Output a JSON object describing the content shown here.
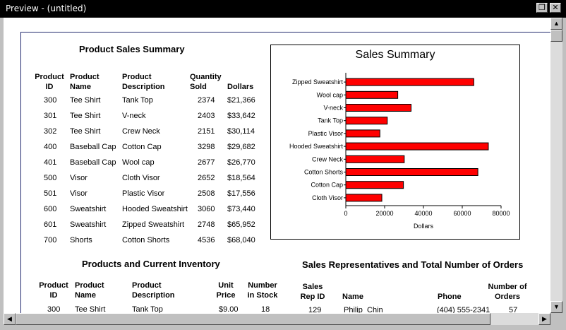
{
  "window": {
    "title": "Preview - (untitled)"
  },
  "icons": {
    "restore": "restore-icon",
    "close": "close-icon"
  },
  "colors": {
    "bar": "#ff0000",
    "titlebar": "#000000"
  },
  "report1": {
    "title": "Product Sales Summary",
    "headers": {
      "id": "Product\nID",
      "name": "Product\nName",
      "desc": "Product\nDescription",
      "qty": "Quantity\nSold",
      "dollars": "Dollars"
    },
    "rows": [
      {
        "id": "300",
        "name": "Tee Shirt",
        "desc": "Tank Top",
        "qty": "2374",
        "dollars": "$21,366"
      },
      {
        "id": "301",
        "name": "Tee Shirt",
        "desc": "V-neck",
        "qty": "2403",
        "dollars": "$33,642"
      },
      {
        "id": "302",
        "name": "Tee Shirt",
        "desc": "Crew Neck",
        "qty": "2151",
        "dollars": "$30,114"
      },
      {
        "id": "400",
        "name": "Baseball Cap",
        "desc": "Cotton Cap",
        "qty": "3298",
        "dollars": "$29,682"
      },
      {
        "id": "401",
        "name": "Baseball Cap",
        "desc": "Wool cap",
        "qty": "2677",
        "dollars": "$26,770"
      },
      {
        "id": "500",
        "name": "Visor",
        "desc": "Cloth Visor",
        "qty": "2652",
        "dollars": "$18,564"
      },
      {
        "id": "501",
        "name": "Visor",
        "desc": "Plastic Visor",
        "qty": "2508",
        "dollars": "$17,556"
      },
      {
        "id": "600",
        "name": "Sweatshirt",
        "desc": "Hooded Sweatshirt",
        "qty": "3060",
        "dollars": "$73,440"
      },
      {
        "id": "601",
        "name": "Sweatshirt",
        "desc": "Zipped Sweatshirt",
        "qty": "2748",
        "dollars": "$65,952"
      },
      {
        "id": "700",
        "name": "Shorts",
        "desc": "Cotton Shorts",
        "qty": "4536",
        "dollars": "$68,040"
      }
    ]
  },
  "chart_data": {
    "type": "bar",
    "orientation": "horizontal",
    "title": "Sales Summary",
    "xlabel": "Dollars",
    "ylabel": "",
    "categories": [
      "Zipped Sweatshirt",
      "Wool cap",
      "V-neck",
      "Tank Top",
      "Plastic Visor",
      "Hooded Sweatshirt",
      "Crew Neck",
      "Cotton Shorts",
      "Cotton Cap",
      "Cloth Visor"
    ],
    "values": [
      65952,
      26770,
      33642,
      21366,
      17556,
      73440,
      30114,
      68040,
      29682,
      18564
    ],
    "xlim": [
      0,
      80000
    ],
    "xticks": [
      "0",
      "20000",
      "40000",
      "60000",
      "80000"
    ],
    "grid": false
  },
  "report2": {
    "title": "Products and Current Inventory",
    "headers": {
      "id": "Product\nID",
      "name": "Product\nName",
      "desc": "Product\nDescription",
      "price": "Unit\nPrice",
      "stock": "Number\nin Stock"
    },
    "rows": [
      {
        "id": "300",
        "name": "Tee Shirt",
        "desc": "Tank Top",
        "price": "$9.00",
        "stock": "18"
      }
    ]
  },
  "report3": {
    "title": "Sales Representatives and Total Number of Orders",
    "headers": {
      "rep": "Sales\nRep ID",
      "name": "Name",
      "phone": "Phone",
      "orders": "Number of\nOrders"
    },
    "rows": [
      {
        "rep": "129",
        "name": "Philip  Chin",
        "phone": "(404) 555-2341",
        "orders": "57"
      }
    ]
  }
}
